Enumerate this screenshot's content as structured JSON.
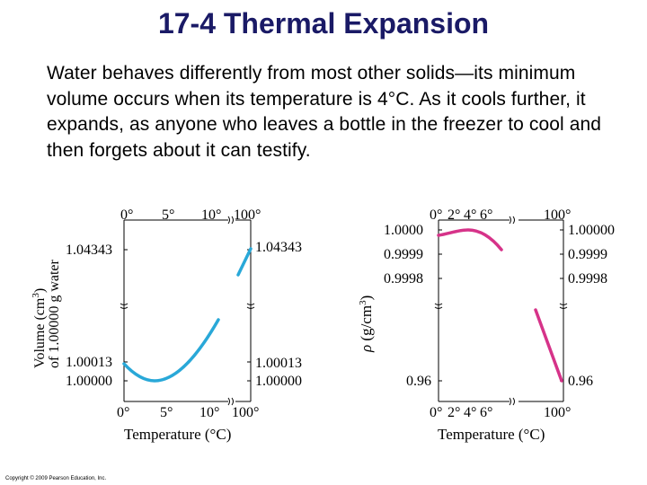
{
  "slide": {
    "title": "17-4 Thermal Expansion",
    "paragraph": "Water behaves differently from most other solids—its minimum volume occurs when its temperature is 4°C. As it cools further, it expands, as anyone who leaves a bottle in the freezer to cool and then forgets about it can testify.",
    "copyright": "Copyright © 2009 Pearson Education, Inc."
  },
  "colors": {
    "curve": "#29a8d8",
    "curve_right": "#d63389",
    "title": "#1a1a66"
  },
  "chart_data": [
    {
      "type": "line",
      "title": "",
      "xlabel": "Temperature (°C)",
      "ylabel": "Volume (cm³) of 1.00000 g water",
      "x_ticks_top": [
        "0°",
        "5°",
        "10°",
        "100°"
      ],
      "x_ticks_bottom": [
        "0°",
        "5°",
        "10°",
        "100°"
      ],
      "y_ticks_left": [
        "1.04343",
        "1.00013",
        "1.00000"
      ],
      "y_ticks_right": [
        "1.04343",
        "1.00013",
        "1.00000"
      ],
      "axis_breaks": true,
      "series": [
        {
          "x": [
            0,
            1,
            2,
            3,
            4,
            5,
            6,
            7,
            8,
            9,
            10,
            11
          ],
          "y": [
            1.00013,
            1.00006,
            1.00003,
            1.00001,
            1.0,
            1.00001,
            1.00003,
            1.00007,
            1.00012,
            1.00018,
            1.00026,
            1.00034
          ]
        },
        {
          "x": [
            95,
            100
          ],
          "y": [
            1.0404,
            1.04343
          ]
        }
      ]
    },
    {
      "type": "line",
      "title": "",
      "xlabel": "Temperature (°C)",
      "ylabel": "ρ (g/cm³)",
      "x_ticks_top": [
        "0°",
        "2°",
        "4°",
        "6°",
        "100°"
      ],
      "x_ticks_bottom": [
        "0°",
        "2°",
        "4°",
        "6°",
        "100°"
      ],
      "y_ticks_left": [
        "1.0000",
        "0.9999",
        "0.9998",
        "0.96"
      ],
      "y_ticks_right": [
        "1.00000",
        "0.9999",
        "0.9998",
        "0.96"
      ],
      "axis_breaks": true,
      "series": [
        {
          "x": [
            0,
            1,
            2,
            3,
            4,
            5,
            6,
            7,
            8
          ],
          "y": [
            0.99984,
            0.99993,
            0.99997,
            0.99999,
            1.0,
            0.99999,
            0.99997,
            0.99993,
            0.99988
          ]
        },
        {
          "x": [
            90,
            100
          ],
          "y": [
            0.9653,
            0.9584
          ]
        }
      ]
    }
  ]
}
